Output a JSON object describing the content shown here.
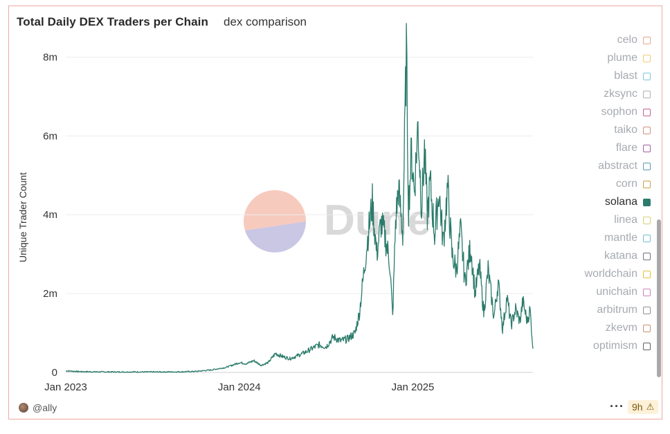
{
  "header": {
    "title": "Total Daily DEX Traders per Chain",
    "subtitle": "dex comparison"
  },
  "watermark": "Dune",
  "legend": {
    "items": [
      {
        "label": "celo",
        "color": "#e3a88a",
        "active": false
      },
      {
        "label": "plume",
        "color": "#f0cc70",
        "active": false
      },
      {
        "label": "blast",
        "color": "#7ec8dc",
        "active": false
      },
      {
        "label": "zksync",
        "color": "#b0b0b0",
        "active": false
      },
      {
        "label": "sophon",
        "color": "#c06090",
        "active": false
      },
      {
        "label": "taiko",
        "color": "#d09080",
        "active": false
      },
      {
        "label": "flare",
        "color": "#a060a0",
        "active": false
      },
      {
        "label": "abstract",
        "color": "#5a9ab0",
        "active": false
      },
      {
        "label": "corn",
        "color": "#c8a040",
        "active": false
      },
      {
        "label": "solana",
        "color": "#2b7b6b",
        "active": true
      },
      {
        "label": "linea",
        "color": "#d6d070",
        "active": false
      },
      {
        "label": "mantle",
        "color": "#70c0d0",
        "active": false
      },
      {
        "label": "katana",
        "color": "#707080",
        "active": false
      },
      {
        "label": "worldchain",
        "color": "#e0c040",
        "active": false
      },
      {
        "label": "unichain",
        "color": "#d080c0",
        "active": false
      },
      {
        "label": "arbitrum",
        "color": "#909090",
        "active": false
      },
      {
        "label": "zkevm",
        "color": "#c89070",
        "active": false
      },
      {
        "label": "optimism",
        "color": "#606060",
        "active": false
      }
    ]
  },
  "footer": {
    "author": "@ally",
    "more": "···",
    "age": "9h",
    "warning_icon": "⚠"
  },
  "chart_data": {
    "type": "line",
    "title": "Total Daily DEX Traders per Chain",
    "subtitle": "dex comparison",
    "xlabel": "",
    "ylabel": "Unique Trader Count",
    "x_ticks": [
      "Jan 2023",
      "Jan 2024",
      "Jan 2025"
    ],
    "y_ticks": [
      "0",
      "2m",
      "4m",
      "6m",
      "8m"
    ],
    "ylim": [
      0,
      8500000
    ],
    "x_range_months": [
      0,
      32.3
    ],
    "grid": true,
    "legend_position": "right",
    "series": [
      {
        "name": "solana",
        "color": "#2b7b6b",
        "points": [
          [
            0.0,
            40000
          ],
          [
            1.0,
            20000
          ],
          [
            2.0,
            15000
          ],
          [
            3.0,
            12000
          ],
          [
            4.0,
            10000
          ],
          [
            5.0,
            12000
          ],
          [
            6.0,
            10000
          ],
          [
            7.0,
            12000
          ],
          [
            8.0,
            15000
          ],
          [
            9.0,
            25000
          ],
          [
            10.0,
            60000
          ],
          [
            11.0,
            120000
          ],
          [
            11.5,
            180000
          ],
          [
            12.0,
            250000
          ],
          [
            12.5,
            220000
          ],
          [
            13.0,
            300000
          ],
          [
            13.5,
            180000
          ],
          [
            14.0,
            250000
          ],
          [
            14.5,
            480000
          ],
          [
            15.0,
            400000
          ],
          [
            15.5,
            350000
          ],
          [
            16.0,
            420000
          ],
          [
            16.5,
            500000
          ],
          [
            17.0,
            600000
          ],
          [
            17.5,
            700000
          ],
          [
            18.0,
            650000
          ],
          [
            18.5,
            900000
          ],
          [
            19.0,
            800000
          ],
          [
            19.5,
            850000
          ],
          [
            20.0,
            1000000
          ],
          [
            20.3,
            1500000
          ],
          [
            20.6,
            2500000
          ],
          [
            20.9,
            3500000
          ],
          [
            21.2,
            4300000
          ],
          [
            21.5,
            3000000
          ],
          [
            21.8,
            3800000
          ],
          [
            22.1,
            3400000
          ],
          [
            22.4,
            2800000
          ],
          [
            22.6,
            1400000
          ],
          [
            22.8,
            3800000
          ],
          [
            23.0,
            4700000
          ],
          [
            23.3,
            3500000
          ],
          [
            23.55,
            8200000
          ],
          [
            23.7,
            4200000
          ],
          [
            23.9,
            5600000
          ],
          [
            24.1,
            4600000
          ],
          [
            24.35,
            6300000
          ],
          [
            24.6,
            4200000
          ],
          [
            24.8,
            5600000
          ],
          [
            25.0,
            4000000
          ],
          [
            25.2,
            4800000
          ],
          [
            25.5,
            3500000
          ],
          [
            25.8,
            4600000
          ],
          [
            26.1,
            3300000
          ],
          [
            26.4,
            4700000
          ],
          [
            26.7,
            3000000
          ],
          [
            27.0,
            2600000
          ],
          [
            27.3,
            3600000
          ],
          [
            27.6,
            2300000
          ],
          [
            28.0,
            3200000
          ],
          [
            28.3,
            2000000
          ],
          [
            28.6,
            2700000
          ],
          [
            28.9,
            1500000
          ],
          [
            29.2,
            2600000
          ],
          [
            29.6,
            1400000
          ],
          [
            29.9,
            2300000
          ],
          [
            30.2,
            1100000
          ],
          [
            30.5,
            1900000
          ],
          [
            30.8,
            1200000
          ],
          [
            31.1,
            1600000
          ],
          [
            31.4,
            1300000
          ],
          [
            31.6,
            1800000
          ],
          [
            31.9,
            1300000
          ],
          [
            32.1,
            1600000
          ],
          [
            32.3,
            600000
          ]
        ]
      }
    ]
  }
}
